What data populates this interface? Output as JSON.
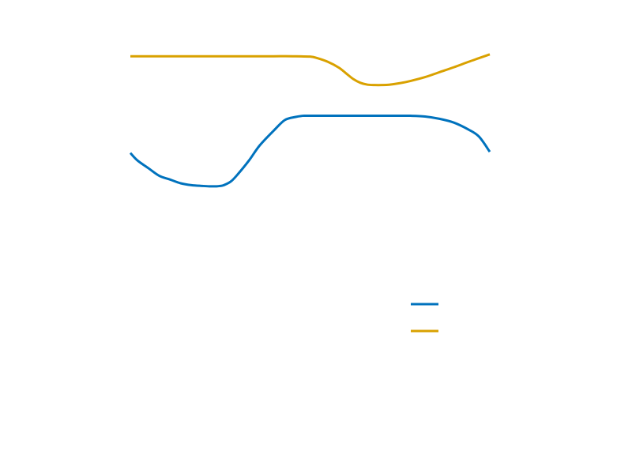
{
  "chart_data": {
    "type": "line",
    "title": "",
    "xlabel": "",
    "ylabel": "",
    "xlim": [
      0,
      1
    ],
    "ylim": [
      0,
      1
    ],
    "grid": false,
    "axes_visible": false,
    "legend": {
      "placement": "right-middle",
      "entries": [
        {
          "label": "",
          "color": "#0072BD"
        },
        {
          "label": "",
          "color": "#D9A100"
        }
      ]
    },
    "series": [
      {
        "color": "#0072BD",
        "x": [
          0.0,
          0.02,
          0.05,
          0.08,
          0.11,
          0.14,
          0.17,
          0.2,
          0.22,
          0.24,
          0.25,
          0.26,
          0.28,
          0.3,
          0.33,
          0.36,
          0.4,
          0.43,
          0.46,
          0.48,
          0.49,
          0.5,
          0.55,
          0.6,
          0.65,
          0.7,
          0.75,
          0.78,
          0.82,
          0.86,
          0.9,
          0.94,
          0.97,
          1.0
        ],
        "y": [
          0.68,
          0.66,
          0.64,
          0.62,
          0.61,
          0.6,
          0.595,
          0.593,
          0.592,
          0.592,
          0.593,
          0.595,
          0.605,
          0.625,
          0.66,
          0.7,
          0.74,
          0.767,
          0.775,
          0.778,
          0.778,
          0.778,
          0.778,
          0.778,
          0.778,
          0.778,
          0.778,
          0.778,
          0.776,
          0.77,
          0.76,
          0.742,
          0.723,
          0.683
        ]
      },
      {
        "color": "#D9A100",
        "x": [
          0.0,
          0.05,
          0.1,
          0.15,
          0.2,
          0.25,
          0.3,
          0.35,
          0.4,
          0.45,
          0.5,
          0.52,
          0.55,
          0.58,
          0.6,
          0.62,
          0.64,
          0.66,
          0.68,
          0.7,
          0.72,
          0.75,
          0.78,
          0.82,
          0.86,
          0.9,
          0.94,
          0.97,
          1.0
        ],
        "y": [
          0.935,
          0.935,
          0.935,
          0.935,
          0.935,
          0.935,
          0.935,
          0.935,
          0.935,
          0.935,
          0.934,
          0.93,
          0.92,
          0.905,
          0.89,
          0.875,
          0.865,
          0.86,
          0.859,
          0.859,
          0.86,
          0.864,
          0.87,
          0.88,
          0.893,
          0.906,
          0.92,
          0.93,
          0.94
        ]
      }
    ]
  }
}
